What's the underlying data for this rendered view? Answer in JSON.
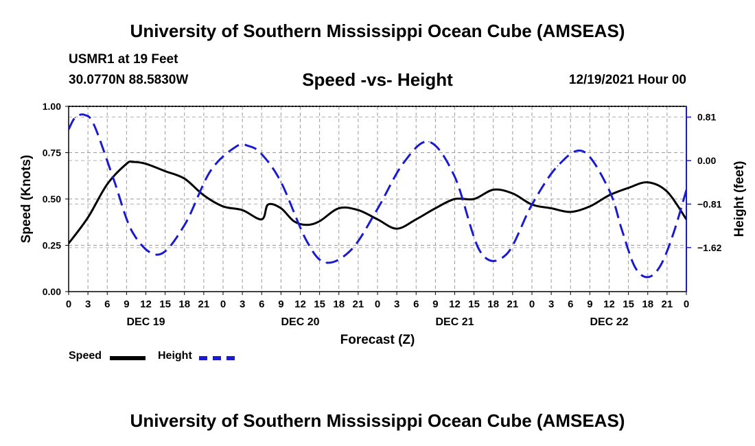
{
  "page": {
    "title_top": "University of Southern Mississippi Ocean Cube (AMSEAS)",
    "title_bottom": "University of Southern Mississippi Ocean Cube (AMSEAS)",
    "station": "USMR1 at 19 Feet",
    "coords": "30.0770N  88.5830W",
    "subtitle": "Speed -vs- Height",
    "datetime": "12/19/2021 Hour 00"
  },
  "chart_data": {
    "type": "line",
    "title": "Speed -vs- Height",
    "xlabel": "Forecast (Z)",
    "ylabel": "Speed (Knots)",
    "y2label": "Height (feet)",
    "xlim": [
      0,
      96
    ],
    "ylim": [
      0,
      1.0
    ],
    "y2lim": [
      -2.44,
      1.01
    ],
    "x_tick_step": 3,
    "x_tick_labels": [
      "0",
      "3",
      "6",
      "9",
      "12",
      "15",
      "18",
      "21",
      "0",
      "3",
      "6",
      "9",
      "12",
      "15",
      "18",
      "21",
      "0",
      "3",
      "6",
      "9",
      "12",
      "15",
      "18",
      "21",
      "0",
      "3",
      "6",
      "9",
      "12",
      "15",
      "18",
      "21",
      "0"
    ],
    "y_ticks": [
      0,
      0.25,
      0.5,
      0.75,
      1.0
    ],
    "y_tick_labels": [
      "0.00",
      "0.25",
      "0.50",
      "0.75",
      "1.00"
    ],
    "y2_ticks": [
      0.81,
      0,
      -0.81,
      -1.62
    ],
    "y2_tick_labels": [
      "0.81",
      "0.00",
      "−0.81",
      "−1.62"
    ],
    "day_labels": [
      {
        "hour": 12,
        "label": "DEC 19"
      },
      {
        "hour": 36,
        "label": "DEC 20"
      },
      {
        "hour": 60,
        "label": "DEC 21"
      },
      {
        "hour": 84,
        "label": "DEC 22"
      }
    ],
    "grid": true,
    "legend": "bottom-left",
    "series": [
      {
        "name": "Speed",
        "axis": "left",
        "color": "#000000",
        "style": "solid",
        "x": [
          0,
          3,
          6,
          9,
          10,
          12,
          15,
          18,
          21,
          24,
          27,
          30,
          31,
          33,
          35,
          37,
          39,
          42,
          45,
          48,
          51,
          54,
          57,
          60,
          63,
          66,
          69,
          72,
          75,
          78,
          81,
          84,
          87,
          90,
          93,
          96
        ],
        "y": [
          0.26,
          0.4,
          0.58,
          0.69,
          0.7,
          0.69,
          0.65,
          0.61,
          0.52,
          0.46,
          0.44,
          0.39,
          0.47,
          0.45,
          0.38,
          0.36,
          0.38,
          0.45,
          0.44,
          0.39,
          0.34,
          0.39,
          0.45,
          0.5,
          0.5,
          0.55,
          0.53,
          0.47,
          0.45,
          0.43,
          0.46,
          0.52,
          0.56,
          0.59,
          0.54,
          0.39
        ]
      },
      {
        "name": "Height",
        "axis": "right",
        "color": "#1a1ad0",
        "style": "dashed",
        "x": [
          0,
          1,
          2.5,
          4,
          7,
          10,
          14,
          18,
          22,
          26,
          28,
          30,
          33,
          37,
          40,
          44,
          48,
          52,
          56,
          60,
          64,
          68,
          72,
          76,
          80,
          84,
          86,
          88,
          90,
          92,
          94,
          96
        ],
        "y": [
          0.58,
          0.8,
          0.85,
          0.65,
          -0.35,
          -1.35,
          -1.75,
          -1.2,
          -0.2,
          0.26,
          0.27,
          0.12,
          -0.4,
          -1.5,
          -1.9,
          -1.65,
          -0.9,
          -0.05,
          0.35,
          -0.3,
          -1.7,
          -1.75,
          -0.82,
          -0.1,
          0.17,
          -0.55,
          -1.3,
          -1.98,
          -2.17,
          -1.95,
          -1.35,
          -0.55
        ]
      }
    ]
  }
}
